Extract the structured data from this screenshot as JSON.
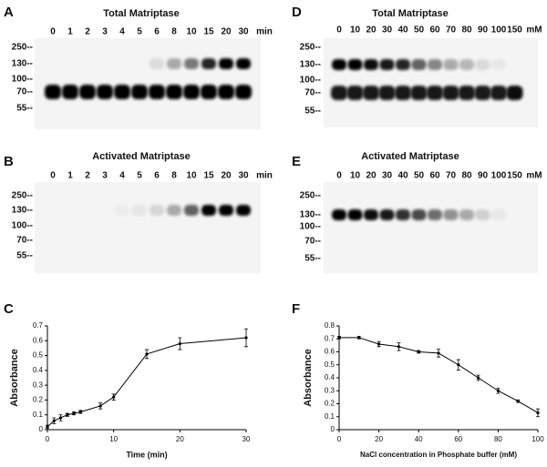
{
  "panels": [
    {
      "label": "A",
      "title": "Total Matriptase",
      "lanes": [
        "0",
        "1",
        "2",
        "3",
        "4",
        "5",
        "6",
        "8",
        "10",
        "15",
        "20",
        "30"
      ],
      "unit": "min",
      "markers": [
        "250--",
        "130--",
        "100--",
        "70--",
        "55--"
      ]
    },
    {
      "label": "B",
      "title": "Activated Matriptase",
      "lanes": [
        "0",
        "1",
        "2",
        "3",
        "4",
        "5",
        "6",
        "8",
        "10",
        "15",
        "20",
        "30"
      ],
      "unit": "min",
      "markers": [
        "250--",
        "130--",
        "100--",
        "70--",
        "55--"
      ]
    },
    {
      "label": "D",
      "title": "Total Matriptase",
      "lanes": [
        "0",
        "10",
        "20",
        "30",
        "40",
        "50",
        "60",
        "70",
        "80",
        "90",
        "100",
        "150"
      ],
      "unit": "mM",
      "markers": [
        "250--",
        "130--",
        "100--",
        "70--",
        "55--"
      ]
    },
    {
      "label": "E",
      "title": "Activated Matriptase",
      "lanes": [
        "0",
        "10",
        "20",
        "30",
        "40",
        "50",
        "60",
        "70",
        "80",
        "90",
        "100",
        "150"
      ],
      "unit": "mM",
      "markers": [
        "250--",
        "130--",
        "100--",
        "70--",
        "55--"
      ]
    }
  ],
  "chart_data": [
    {
      "type": "line",
      "panel_label": "C",
      "xlabel": "Time (min)",
      "ylabel": "Absorbance",
      "x": [
        0,
        1,
        2,
        3,
        4,
        5,
        8,
        10,
        15,
        20,
        30
      ],
      "values": [
        0.02,
        0.06,
        0.08,
        0.1,
        0.11,
        0.12,
        0.16,
        0.22,
        0.51,
        0.58,
        0.62
      ],
      "errors": [
        0.01,
        0.02,
        0.02,
        0.01,
        0.01,
        0.01,
        0.02,
        0.02,
        0.03,
        0.04,
        0.06
      ],
      "xlim": [
        0,
        30
      ],
      "ylim": [
        0,
        0.7
      ],
      "xticks": [
        0,
        10,
        20,
        30
      ],
      "yticks": [
        0,
        0.1,
        0.2,
        0.3,
        0.4,
        0.5,
        0.6,
        0.7
      ],
      "color": "#000000"
    },
    {
      "type": "line",
      "panel_label": "F",
      "xlabel": "NaCl concentration in Phosphate buffer (mM)",
      "ylabel": "Absorbance",
      "x": [
        0,
        10,
        20,
        30,
        40,
        50,
        60,
        70,
        80,
        90,
        100
      ],
      "values": [
        0.71,
        0.71,
        0.66,
        0.64,
        0.6,
        0.59,
        0.5,
        0.4,
        0.3,
        0.22,
        0.13
      ],
      "errors": [
        0.01,
        0.01,
        0.02,
        0.03,
        0.01,
        0.03,
        0.04,
        0.02,
        0.02,
        0.01,
        0.03
      ],
      "xlim": [
        0,
        100
      ],
      "ylim": [
        0,
        0.8
      ],
      "xticks": [
        0,
        20,
        40,
        60,
        80,
        100
      ],
      "yticks": [
        0,
        0.1,
        0.2,
        0.3,
        0.4,
        0.5,
        0.6,
        0.7,
        0.8
      ],
      "color": "#000000"
    }
  ]
}
